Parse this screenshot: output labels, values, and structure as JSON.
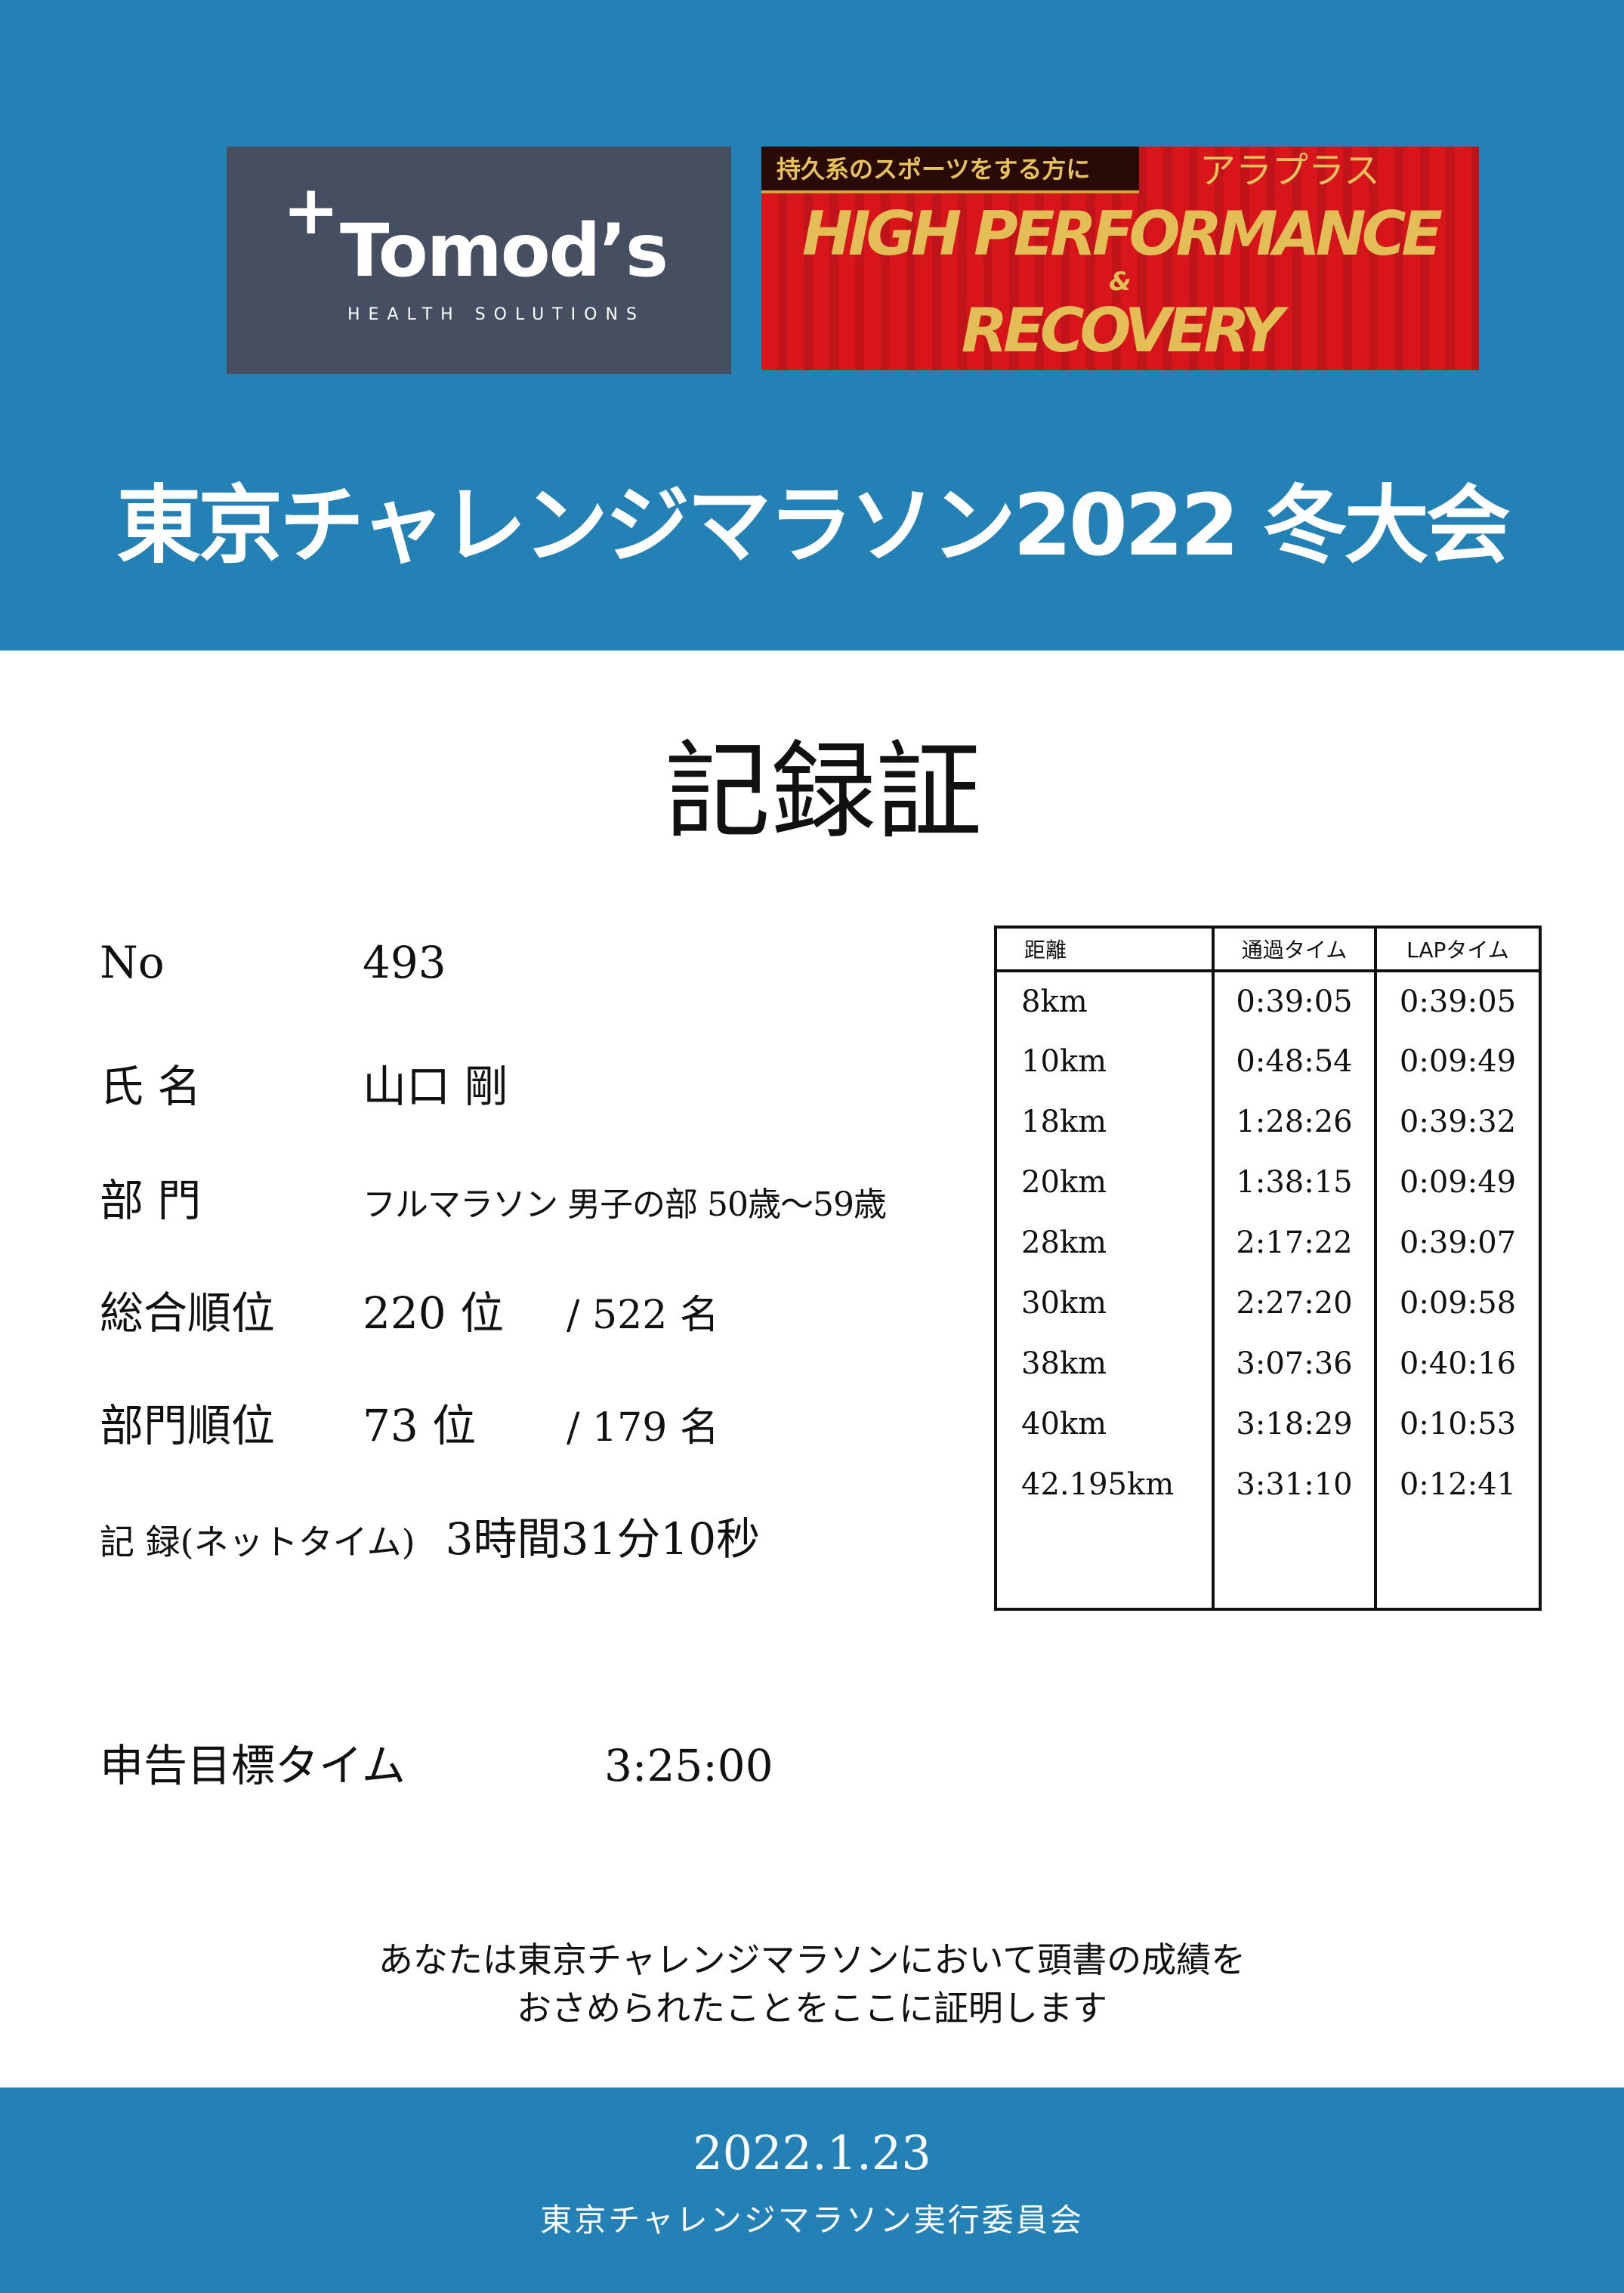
{
  "header": {
    "title": "東京チャレンジマラソン2022 冬大会",
    "bg_color": "#2381b6"
  },
  "logos": {
    "tomods": {
      "name": "Tomod’s",
      "sub": "HEALTH SOLUTIONS"
    },
    "banner": {
      "tag": "持久系のスポーツをする方に",
      "brand": "アラプラス",
      "line1": "HIGH PERFORMANCE",
      "amp": "&",
      "line2": "RECOVERY"
    }
  },
  "certificate_title": "記録証",
  "record": {
    "no": {
      "label": "No",
      "value": "493"
    },
    "name": {
      "label": "氏 名",
      "value": "山口 剛"
    },
    "division": {
      "label": "部 門",
      "value": "フルマラソン 男子の部 50歳〜59歳"
    },
    "overall_rank": {
      "label": "総合順位",
      "value": "220 位",
      "total": "/ 522 名"
    },
    "division_rank": {
      "label": "部門順位",
      "value": "73 位",
      "total": "/ 179 名"
    },
    "net_time": {
      "label": "記 録(ネットタイム)",
      "value": "3時間31分10秒"
    },
    "target": {
      "label": "申告目標タイム",
      "value": "3:25:00"
    }
  },
  "splits": {
    "headers": [
      "距離",
      "通過タイム",
      "LAPタイム"
    ],
    "rows": [
      [
        "8km",
        "0:39:05",
        "0:39:05"
      ],
      [
        "10km",
        "0:48:54",
        "0:09:49"
      ],
      [
        "18km",
        "1:28:26",
        "0:39:32"
      ],
      [
        "20km",
        "1:38:15",
        "0:09:49"
      ],
      [
        "28km",
        "2:17:22",
        "0:39:07"
      ],
      [
        "30km",
        "2:27:20",
        "0:09:58"
      ],
      [
        "38km",
        "3:07:36",
        "0:40:16"
      ],
      [
        "40km",
        "3:18:29",
        "0:10:53"
      ],
      [
        "42.195km",
        "3:31:10",
        "0:12:41"
      ]
    ]
  },
  "statement": [
    "あなたは東京チャレンジマラソンにおいて頭書の成績を",
    "おさめられたことをここに証明します"
  ],
  "footer": {
    "date": "2022.1.23",
    "organizer": "東京チャレンジマラソン実行委員会"
  }
}
